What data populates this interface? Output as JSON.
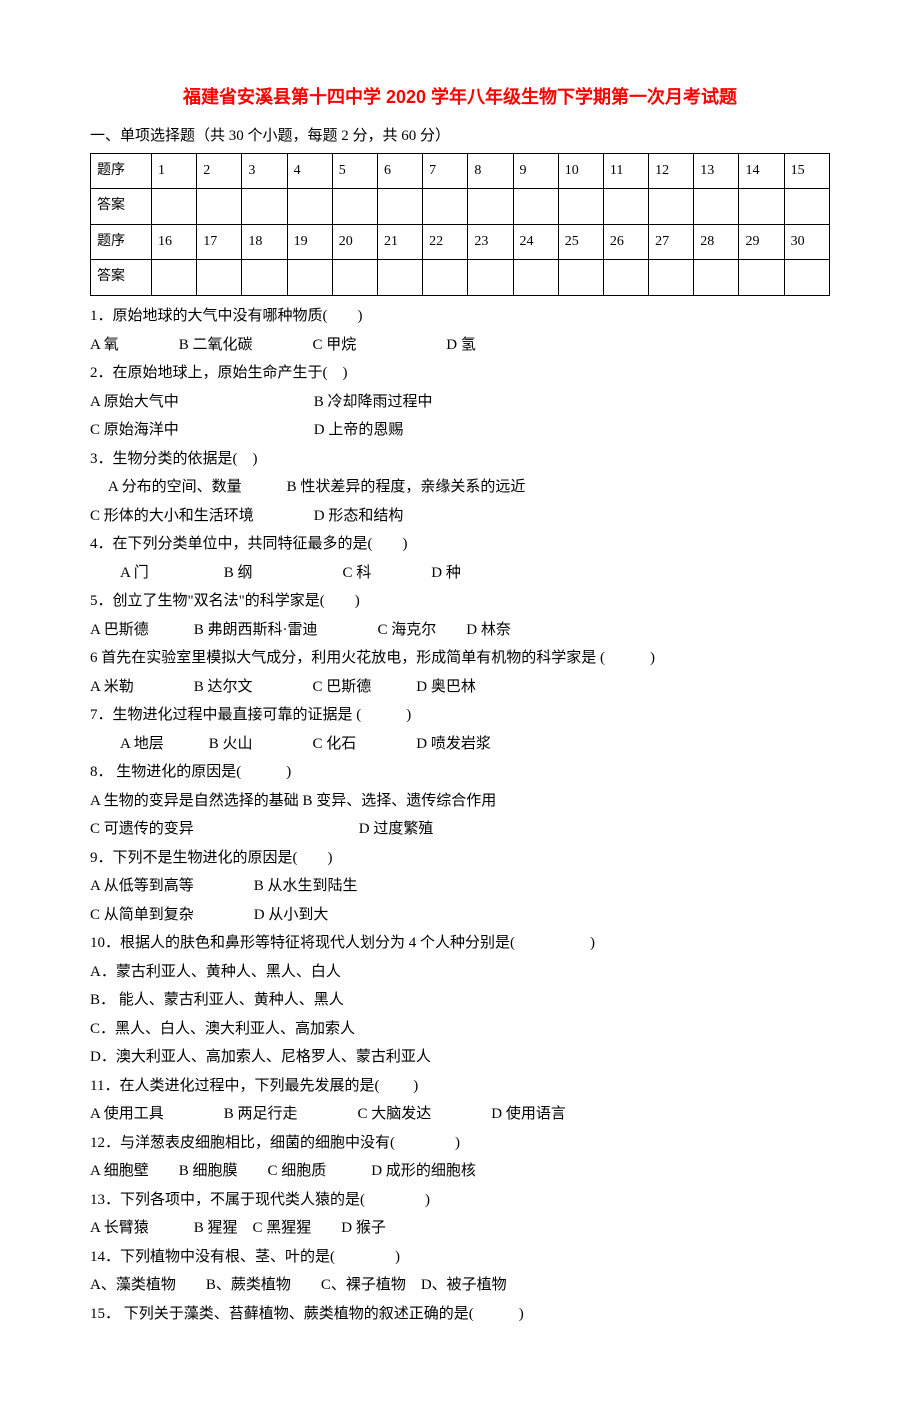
{
  "title": "福建省安溪县第十四中学 2020 学年八年级生物下学期第一次月考试题",
  "section_header": "一、单项选择题（共 30 个小题，每题 2 分，共 60 分）",
  "table": {
    "row1_label": "题序",
    "row2_label": "答案",
    "row3_label": "题序",
    "row4_label": "答案",
    "nums_a": [
      "1",
      "2",
      "3",
      "4",
      "5",
      "6",
      "7",
      "8",
      "9",
      "10",
      "11",
      "12",
      "13",
      "14",
      "15"
    ],
    "nums_b": [
      "16",
      "17",
      "18",
      "19",
      "20",
      "21",
      "22",
      "23",
      "24",
      "25",
      "26",
      "27",
      "28",
      "29",
      "30"
    ]
  },
  "q1": {
    "text": "1．原始地球的大气中没有哪种物质(　　)",
    "opts": "A 氧　　　　B 二氧化碳　　　　C 甲烷　　　　　　D 氢"
  },
  "q2": {
    "text": "2．在原始地球上，原始生命产生于(　)",
    "optA": "A 原始大气中　　　　　　　　　B 冷却降雨过程中",
    "optB": "C 原始海洋中　　　　　　　　　D 上帝的恩赐"
  },
  "q3": {
    "text": "3．生物分类的依据是(　)",
    "optA": "　 A 分布的空间、数量　　　B 性状差异的程度，亲缘关系的远近",
    "optB": "C 形体的大小和生活环境　　　　D 形态和结构"
  },
  "q4": {
    "text": "4．在下列分类单位中，共同特征最多的是(　　)",
    "opts": "　　A 门　　　　　B 纲　　　　　　C 科　　　　D 种"
  },
  "q5": {
    "text": "5．创立了生物\"双名法\"的科学家是(　　)",
    "opts": "  A 巴斯德　　　B 弗朗西斯科·雷迪　　　　C 海克尔　　D 林奈"
  },
  "q6": {
    "text": "6 首先在实验室里模拟大气成分，利用火花放电，形成简单有机物的科学家是 (　　　)",
    "opts": "A 米勒　　　　B  达尔文　　　　C 巴斯德　　　D 奥巴林"
  },
  "q7": {
    "text": "7．生物进化过程中最直接可靠的证据是 (　　　)",
    "opts": "　　A 地层　　　B 火山　　　　C 化石　　　　D 喷发岩浆"
  },
  "q8": {
    "text": "8．  生物进化的原因是(　　　)",
    "optA": "A 生物的变异是自然选择的基础 B 变异、选择、遗传综合作用",
    "optB": "C 可遗传的变异　　　　　　　　　　　D 过度繁殖"
  },
  "q9": {
    "text": "9．下列不是生物进化的原因是(　　)",
    "optA": "A 从低等到高等　　　　B  从水生到陆生",
    "optB": "  C 从简单到复杂　　　　D 从小到大"
  },
  "q10": {
    "text": "10．根据人的肤色和鼻形等特征将现代人划分为 4 个人种分别是(　　　　　)",
    "a": "A．蒙古利亚人、黄种人、黑人、白人",
    "b": "B．  能人、蒙古利亚人、黄种人、黑人",
    "c": "C．黑人、白人、澳大利亚人、高加索人",
    "d": "D．澳大利亚人、高加索人、尼格罗人、蒙古利亚人"
  },
  "q11": {
    "text": "11．在人类进化过程中，下列最先发展的是(　　 )",
    "opts": "A 使用工具　　　　B 两足行走　　　　C 大脑发达　　　　D 使用语言"
  },
  "q12": {
    "text": "12．与洋葱表皮细胞相比，细菌的细胞中没有(　　　　)",
    "opts": "A 细胞壁　　B 细胞膜　　C 细胞质　　　D 成形的细胞核"
  },
  "q13": {
    "text": "13．下列各项中，不属于现代类人猿的是(　　　　)",
    "opts": "A 长臂猿　　　B 猩猩　C 黑猩猩　　D 猴子"
  },
  "q14": {
    "text": "14．下列植物中没有根、茎、叶的是(　　　　)",
    "opts": "A、藻类植物　　B、蕨类植物　　C、裸子植物　D、被子植物"
  },
  "q15": {
    "text": "15．  下列关于藻类、苔藓植物、蕨类植物的叙述正确的是(　　　)"
  }
}
